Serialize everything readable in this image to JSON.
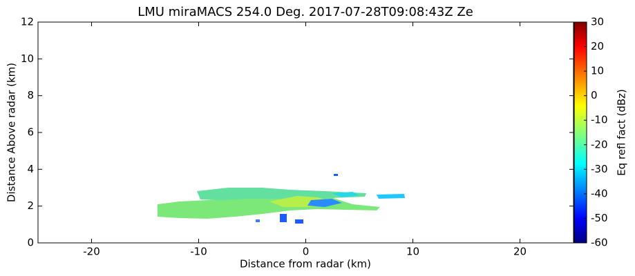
{
  "chart_data": {
    "type": "rhi",
    "title": "LMU miraMACS 254.0 Deg. 2017-07-28T09:08:43Z  Ze",
    "xlabel": "Distance from radar (km)",
    "ylabel": "Distance Above radar  (km)",
    "xlim": [
      -25,
      25
    ],
    "xticks": [
      -20,
      -10,
      0,
      10,
      20
    ],
    "ylim": [
      0,
      12
    ],
    "yticks": [
      0,
      2,
      4,
      6,
      8,
      10,
      12
    ],
    "colorbar": {
      "label": "Eq refl fact (dBz)",
      "lim": [
        -60,
        30
      ],
      "ticks": [
        -60,
        -50,
        -40,
        -30,
        -20,
        -10,
        0,
        10,
        20,
        30
      ]
    }
  }
}
